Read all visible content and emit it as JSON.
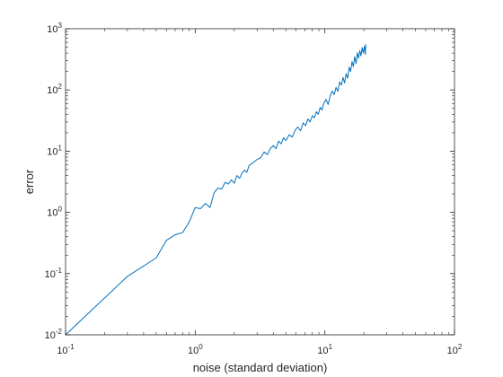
{
  "chart_data": {
    "type": "line",
    "title": "",
    "xlabel": "noise (standard deviation)",
    "ylabel": "error",
    "xscale": "log",
    "yscale": "log",
    "xlim": [
      0.1,
      100
    ],
    "ylim": [
      0.01,
      1000
    ],
    "x_ticks": [
      {
        "value": 0.1,
        "base": "10",
        "exp": "-1"
      },
      {
        "value": 1,
        "base": "10",
        "exp": "0"
      },
      {
        "value": 10,
        "base": "10",
        "exp": "1"
      },
      {
        "value": 100,
        "base": "10",
        "exp": "2"
      }
    ],
    "y_ticks": [
      {
        "value": 0.01,
        "base": "10",
        "exp": "-2"
      },
      {
        "value": 0.1,
        "base": "10",
        "exp": "-1"
      },
      {
        "value": 1,
        "base": "10",
        "exp": "0"
      },
      {
        "value": 10,
        "base": "10",
        "exp": "1"
      },
      {
        "value": 100,
        "base": "10",
        "exp": "2"
      },
      {
        "value": 1000,
        "base": "10",
        "exp": "3"
      }
    ],
    "grid": false,
    "legend": "none",
    "line_color": "#0072BD",
    "series": [
      {
        "x": [
          0.1,
          0.3,
          0.5,
          0.6,
          0.7,
          0.8,
          0.9,
          1.0,
          1.1,
          1.2,
          1.3,
          1.4,
          1.5,
          1.6,
          1.7,
          1.8,
          1.9,
          2.0,
          2.1,
          2.2,
          2.3,
          2.4,
          2.5,
          2.6,
          2.8,
          3.0,
          3.2,
          3.4,
          3.6,
          3.8,
          4.0,
          4.2,
          4.4,
          4.6,
          4.8,
          5.0,
          5.3,
          5.6,
          5.9,
          6.2,
          6.5,
          6.8,
          7.1,
          7.4,
          7.7,
          8.0,
          8.3,
          8.6,
          8.9,
          9.2,
          9.5,
          9.8,
          10.2,
          10.6,
          11.0,
          11.4,
          11.8,
          12.2,
          12.6,
          13.0,
          13.4,
          13.8,
          14.2,
          14.6,
          15.0,
          15.4,
          15.8,
          16.2,
          16.6,
          17.0,
          17.4,
          17.8,
          18.2,
          18.6,
          19.0,
          19.4,
          19.8,
          20.2,
          20.5,
          20.7
        ],
        "y": [
          0.01,
          0.09,
          0.18,
          0.35,
          0.43,
          0.47,
          0.7,
          1.2,
          1.15,
          1.4,
          1.2,
          2.1,
          2.5,
          2.4,
          3.1,
          2.9,
          3.4,
          3.0,
          4.0,
          3.6,
          4.4,
          4.9,
          4.5,
          5.8,
          6.5,
          7.3,
          7.8,
          9.7,
          8.8,
          11.0,
          12.3,
          11.0,
          14.6,
          13.2,
          16.5,
          14.9,
          18.5,
          17.0,
          22.0,
          24.8,
          21.5,
          29.0,
          26.0,
          33.5,
          30.0,
          38.0,
          35.0,
          44.0,
          40.0,
          52.0,
          47.0,
          60.0,
          70.0,
          58.0,
          80.0,
          96.0,
          84.0,
          110.0,
          95.0,
          135.0,
          120.0,
          160.0,
          130.0,
          185.0,
          155.0,
          235.0,
          200.0,
          290.0,
          240.0,
          350.0,
          270.0,
          405.0,
          330.0,
          440.0,
          360.0,
          490.0,
          400.0,
          520.0,
          380.0,
          560.0
        ]
      }
    ]
  }
}
